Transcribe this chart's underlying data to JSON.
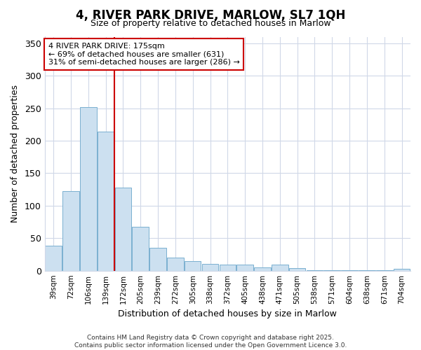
{
  "title": "4, RIVER PARK DRIVE, MARLOW, SL7 1QH",
  "subtitle": "Size of property relative to detached houses in Marlow",
  "xlabel": "Distribution of detached houses by size in Marlow",
  "ylabel": "Number of detached properties",
  "bar_color": "#cce0f0",
  "bar_edge_color": "#7ab0d0",
  "grid_color": "#d0d8e8",
  "background_color": "#ffffff",
  "vline_color": "#cc0000",
  "vline_index": 4,
  "annotation_text": "4 RIVER PARK DRIVE: 175sqm\n← 69% of detached houses are smaller (631)\n31% of semi-detached houses are larger (286) →",
  "annotation_box_color": "#ffffff",
  "annotation_box_edge": "#cc0000",
  "footer_line1": "Contains HM Land Registry data © Crown copyright and database right 2025.",
  "footer_line2": "Contains public sector information licensed under the Open Government Licence 3.0.",
  "categories": [
    "39sqm",
    "72sqm",
    "106sqm",
    "139sqm",
    "172sqm",
    "205sqm",
    "239sqm",
    "272sqm",
    "305sqm",
    "338sqm",
    "372sqm",
    "405sqm",
    "438sqm",
    "471sqm",
    "505sqm",
    "538sqm",
    "571sqm",
    "604sqm",
    "638sqm",
    "671sqm",
    "704sqm"
  ],
  "values": [
    38,
    122,
    252,
    214,
    128,
    68,
    35,
    20,
    15,
    10,
    9,
    9,
    5,
    9,
    4,
    1,
    1,
    1,
    1,
    1,
    3
  ],
  "ylim": [
    0,
    360
  ],
  "yticks": [
    0,
    50,
    100,
    150,
    200,
    250,
    300,
    350
  ]
}
